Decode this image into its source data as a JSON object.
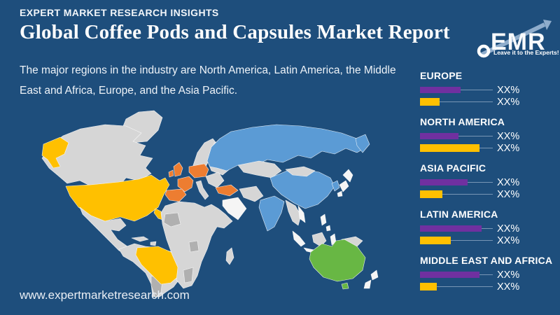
{
  "page": {
    "background_color": "#1e4e7c",
    "eyebrow": "EXPERT MARKET RESEARCH INSIGHTS",
    "title": "Global Coffee Pods and Capsules Market Report",
    "description_line1": "The major regions in the industry are North America, Latin America, the Middle",
    "description_line2": "East and Africa, Europe, and the Asia Pacific.",
    "footer_url": "www.expertmarketresearch.com"
  },
  "logo": {
    "text": "EMR",
    "tagline": "Leave it to the Experts!"
  },
  "map": {
    "colors": {
      "base_land": "#d6d6d6",
      "dark_land": "#b0b0b0",
      "light_land": "#f5f5f5",
      "americas_highlight": "#ffc000",
      "europe_highlight": "#ed7d31",
      "asia_highlight": "#5b9bd5",
      "australia_highlight": "#68b744"
    },
    "highlighted_regions": [
      "United States",
      "Alaska",
      "Brazil",
      "Western Europe",
      "Turkey",
      "Russia",
      "China",
      "India",
      "Australia"
    ]
  },
  "legend": {
    "bar_colors": {
      "purple": "#7030a0",
      "yellow": "#ffc000"
    },
    "regions": [
      {
        "name": "EUROPE",
        "purple_width": 58,
        "purple_label": "XX%",
        "yellow_width": 28,
        "yellow_label": "XX%"
      },
      {
        "name": "NORTH AMERICA",
        "purple_width": 55,
        "purple_label": "XX%",
        "yellow_width": 85,
        "yellow_label": "XX%"
      },
      {
        "name": "ASIA PACIFIC",
        "purple_width": 68,
        "purple_label": "XX%",
        "yellow_width": 32,
        "yellow_label": "XX%"
      },
      {
        "name": "LATIN AMERICA",
        "purple_width": 88,
        "purple_label": "XX%",
        "yellow_width": 44,
        "yellow_label": "XX%"
      },
      {
        "name": "MIDDLE EAST AND AFRICA",
        "purple_width": 85,
        "purple_label": "XX%",
        "yellow_width": 24,
        "yellow_label": "XX%"
      }
    ]
  }
}
